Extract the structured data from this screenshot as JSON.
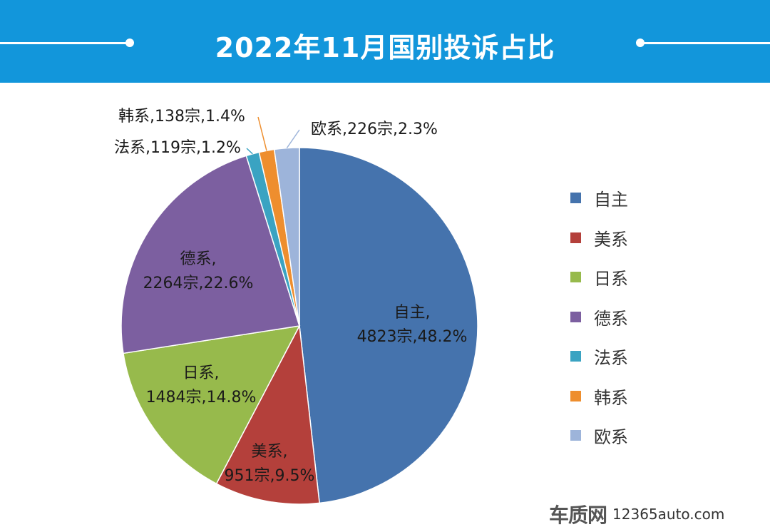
{
  "title": "2022年11月国别投诉占比",
  "watermark": {
    "brand": "车质网",
    "url": "12365auto.com"
  },
  "chart_data": {
    "type": "pie",
    "title": "2022年11月国别投诉占比",
    "legend_position": "right",
    "slices": [
      {
        "name": "自主",
        "count": 4823,
        "count_label": "4823宗",
        "percent": 48.2,
        "percent_label": "48.2%",
        "color": "#4573ad"
      },
      {
        "name": "美系",
        "count": 951,
        "count_label": "951宗",
        "percent": 9.5,
        "percent_label": "9.5%",
        "color": "#b4403b"
      },
      {
        "name": "日系",
        "count": 1484,
        "count_label": "1484宗",
        "percent": 14.8,
        "percent_label": "14.8%",
        "color": "#97ba4c"
      },
      {
        "name": "德系",
        "count": 2264,
        "count_label": "2264宗",
        "percent": 22.6,
        "percent_label": "22.6%",
        "color": "#7c5fa0"
      },
      {
        "name": "法系",
        "count": 119,
        "count_label": "119宗",
        "percent": 1.2,
        "percent_label": "1.2%",
        "color": "#3aa3c2"
      },
      {
        "name": "韩系",
        "count": 138,
        "count_label": "138宗",
        "percent": 1.4,
        "percent_label": "1.4%",
        "color": "#ee8e2e"
      },
      {
        "name": "欧系",
        "count": 226,
        "count_label": "226宗",
        "percent": 2.3,
        "percent_label": "2.3%",
        "color": "#9db4da"
      }
    ]
  }
}
